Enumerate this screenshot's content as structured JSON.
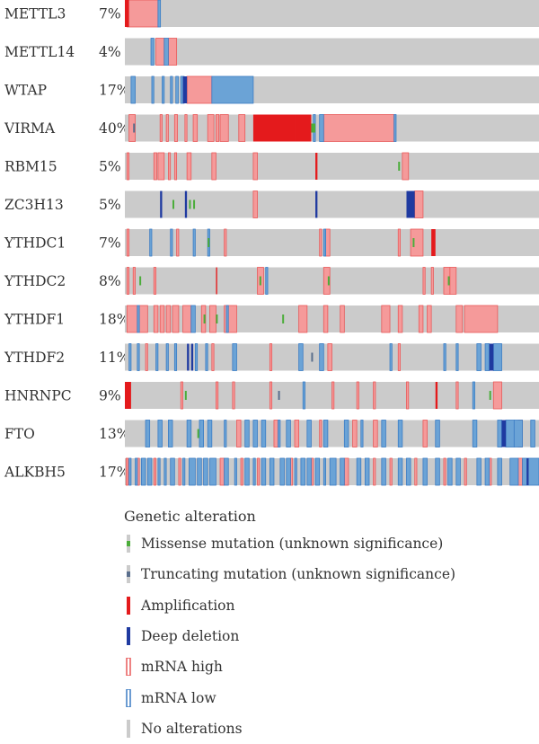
{
  "chart_data": {
    "type": "oncoprint",
    "genes": [
      {
        "name": "METTL3",
        "pct": "7%"
      },
      {
        "name": "METTL14",
        "pct": "4%"
      },
      {
        "name": "WTAP",
        "pct": "17%"
      },
      {
        "name": "VIRMA",
        "pct": "40%"
      },
      {
        "name": "RBM15",
        "pct": "5%"
      },
      {
        "name": "ZC3H13",
        "pct": "5%"
      },
      {
        "name": "YTHDC1",
        "pct": "7%"
      },
      {
        "name": "YTHDC2",
        "pct": "8%"
      },
      {
        "name": "YTHDF1",
        "pct": "18%"
      },
      {
        "name": "YTHDF2",
        "pct": "11%"
      },
      {
        "name": "HNRNPC",
        "pct": "9%"
      },
      {
        "name": "FTO",
        "pct": "13%"
      },
      {
        "name": "ALKBH5",
        "pct": "17%"
      }
    ],
    "sample_scale": 100,
    "alterations_note": "events listed as [start, end] in % of the sample axis",
    "events": [
      {
        "high": [
          [
            0.5,
            8
          ]
        ],
        "low": [
          [
            8,
            8.6
          ]
        ],
        "amp": [
          [
            0,
            1
          ]
        ]
      },
      {
        "low": [
          [
            6.3,
            7
          ],
          [
            9.5,
            10.5
          ]
        ],
        "high": [
          [
            7.5,
            9.5
          ],
          [
            10.5,
            12.5
          ]
        ]
      },
      {
        "low": [
          [
            1.5,
            2.5
          ],
          [
            6.5,
            7
          ],
          [
            9,
            9.5
          ],
          [
            11,
            11.5
          ],
          [
            12.3,
            12.9
          ],
          [
            13.5,
            14.3
          ],
          [
            21,
            31
          ]
        ],
        "del": [
          [
            14,
            15
          ]
        ],
        "high": [
          [
            15,
            21
          ]
        ]
      },
      {
        "high": [
          [
            1,
            2.5
          ],
          [
            8.5,
            9
          ],
          [
            10,
            10.5
          ],
          [
            12,
            12.7
          ],
          [
            14.5,
            15
          ],
          [
            16.5,
            17.5
          ],
          [
            20,
            21.5
          ],
          [
            22,
            22.7
          ],
          [
            23,
            25
          ],
          [
            27.5,
            29
          ],
          [
            48,
            65
          ]
        ],
        "amp": [
          [
            31,
            41
          ],
          [
            41,
            45
          ]
        ],
        "low": [
          [
            45.5,
            46
          ],
          [
            47,
            48
          ],
          [
            65,
            65.5
          ]
        ],
        "mis": [
          [
            45,
            46
          ]
        ],
        "trunc": [
          [
            2,
            2.3
          ]
        ]
      },
      {
        "high": [
          [
            0.5,
            1
          ],
          [
            7,
            7.7
          ],
          [
            8,
            9.5
          ],
          [
            10.5,
            11
          ],
          [
            12,
            12.5
          ],
          [
            15,
            16
          ],
          [
            21,
            22
          ],
          [
            31,
            32
          ],
          [
            67,
            68.5
          ]
        ],
        "amp": [
          [
            46,
            46.5
          ]
        ],
        "mis": [
          [
            66,
            66.3
          ]
        ]
      },
      {
        "del": [
          [
            8.5,
            9
          ],
          [
            14.5,
            15
          ],
          [
            46,
            46.5
          ],
          [
            68,
            70
          ]
        ],
        "mis": [
          [
            11.5,
            11.8
          ],
          [
            15.5,
            15.8
          ],
          [
            16.5,
            16.8
          ]
        ],
        "high": [
          [
            31,
            32
          ],
          [
            70,
            72
          ]
        ]
      },
      {
        "high": [
          [
            0.5,
            1
          ],
          [
            12.5,
            13
          ],
          [
            24,
            24.5
          ],
          [
            47,
            47.5
          ],
          [
            48.5,
            49.5
          ],
          [
            66,
            66.5
          ],
          [
            69,
            72
          ]
        ],
        "low": [
          [
            6,
            6.5
          ],
          [
            11,
            11.5
          ],
          [
            16.5,
            17
          ],
          [
            20,
            20.5
          ],
          [
            48,
            48.5
          ]
        ],
        "mis": [
          [
            20,
            20.3
          ],
          [
            69.5,
            69.8
          ]
        ],
        "amp": [
          [
            74,
            75
          ]
        ]
      },
      {
        "high": [
          [
            0.5,
            1
          ],
          [
            2,
            2.5
          ],
          [
            7,
            7.5
          ],
          [
            32,
            33.5
          ],
          [
            48,
            49.5
          ],
          [
            72,
            72.5
          ],
          [
            74,
            74.5
          ],
          [
            77,
            78.5
          ],
          [
            78.5,
            80
          ]
        ],
        "low": [
          [
            34,
            34.5
          ]
        ],
        "mis": [
          [
            3.5,
            3.8
          ],
          [
            32.5,
            32.8
          ],
          [
            49,
            49.3
          ],
          [
            78,
            78.3
          ]
        ],
        "amp": [
          [
            22,
            22.3
          ]
        ]
      },
      {
        "high": [
          [
            0.5,
            3
          ],
          [
            3.5,
            5.5
          ],
          [
            7,
            8
          ],
          [
            8.5,
            9.5
          ],
          [
            10,
            11
          ],
          [
            11.5,
            13
          ],
          [
            14,
            16
          ],
          [
            18.5,
            19.5
          ],
          [
            20.5,
            22
          ],
          [
            24,
            27
          ],
          [
            42,
            44
          ],
          [
            48,
            49
          ],
          [
            52,
            53
          ],
          [
            62,
            64
          ],
          [
            66,
            67
          ],
          [
            71,
            72
          ],
          [
            73,
            74
          ],
          [
            80,
            81.5
          ],
          [
            82,
            90
          ]
        ],
        "low": [
          [
            3,
            3.5
          ],
          [
            16,
            17
          ],
          [
            24.5,
            25
          ]
        ],
        "mis": [
          [
            19,
            19.3
          ],
          [
            22,
            22.3
          ],
          [
            38,
            38.3
          ]
        ]
      },
      {
        "low": [
          [
            1,
            1.5
          ],
          [
            3,
            3.5
          ],
          [
            7.5,
            8
          ],
          [
            10,
            10.5
          ],
          [
            12,
            12.5
          ],
          [
            17,
            17.5
          ],
          [
            19.5,
            20
          ],
          [
            26,
            27
          ],
          [
            42,
            43
          ],
          [
            47,
            48
          ],
          [
            64,
            64.5
          ],
          [
            77,
            77.5
          ],
          [
            80,
            80.5
          ],
          [
            85,
            86
          ],
          [
            87,
            88
          ],
          [
            89,
            91
          ]
        ],
        "del": [
          [
            15,
            15.5
          ],
          [
            16,
            16.5
          ],
          [
            88,
            89
          ]
        ],
        "high": [
          [
            5,
            5.5
          ],
          [
            21,
            21.5
          ],
          [
            35,
            35.5
          ],
          [
            49,
            50
          ],
          [
            66,
            66.5
          ]
        ],
        "trunc": [
          [
            45,
            45.3
          ]
        ]
      },
      {
        "amp": [
          [
            0,
            1.5
          ],
          [
            75,
            75.5
          ]
        ],
        "high": [
          [
            13.5,
            14
          ],
          [
            22,
            22.5
          ],
          [
            26,
            26.5
          ],
          [
            35,
            35.5
          ],
          [
            50,
            50.5
          ],
          [
            56,
            56.5
          ],
          [
            60,
            60.5
          ],
          [
            68,
            68.5
          ],
          [
            80,
            80.5
          ],
          [
            89,
            91
          ]
        ],
        "low": [
          [
            43,
            43.5
          ],
          [
            84,
            84.5
          ]
        ],
        "mis": [
          [
            14.5,
            14.8
          ],
          [
            88,
            88.3
          ]
        ],
        "trunc": [
          [
            37,
            37.3
          ]
        ]
      },
      {
        "low": [
          [
            5,
            6
          ],
          [
            8,
            9
          ],
          [
            10.5,
            11.5
          ],
          [
            15,
            16
          ],
          [
            18,
            19
          ],
          [
            20,
            21
          ],
          [
            24,
            24.5
          ],
          [
            29,
            30
          ],
          [
            31,
            32
          ],
          [
            33,
            34
          ],
          [
            37,
            37.5
          ],
          [
            39,
            40
          ],
          [
            44,
            45
          ],
          [
            48,
            49
          ],
          [
            53,
            54
          ],
          [
            57,
            57.5
          ],
          [
            62,
            63
          ],
          [
            66,
            67
          ],
          [
            75,
            76
          ],
          [
            84,
            85
          ],
          [
            90,
            91
          ],
          [
            92,
            94
          ],
          [
            94,
            96
          ],
          [
            98,
            99
          ]
        ],
        "high": [
          [
            27,
            28
          ],
          [
            36,
            37
          ],
          [
            41,
            42
          ],
          [
            47,
            47.5
          ],
          [
            55,
            56
          ],
          [
            60,
            61
          ],
          [
            72,
            73
          ],
          [
            95,
            96
          ]
        ],
        "del": [
          [
            91,
            92
          ]
        ],
        "mis": [
          [
            17.5,
            17.8
          ]
        ]
      },
      {
        "low": [
          [
            1,
            1.5
          ],
          [
            2.5,
            3
          ],
          [
            4,
            5
          ],
          [
            5.5,
            6.5
          ],
          [
            8,
            8.5
          ],
          [
            9.5,
            10
          ],
          [
            11,
            12
          ],
          [
            14,
            14.5
          ],
          [
            15.5,
            17
          ],
          [
            17.5,
            18.5
          ],
          [
            19,
            20
          ],
          [
            20.5,
            22
          ],
          [
            24,
            25
          ],
          [
            26.5,
            27
          ],
          [
            29,
            30
          ],
          [
            31,
            31.5
          ],
          [
            33,
            34
          ],
          [
            35,
            36
          ],
          [
            37.5,
            38.5
          ],
          [
            39,
            40
          ],
          [
            41,
            41.5
          ],
          [
            42.5,
            43.5
          ],
          [
            44,
            45
          ],
          [
            46,
            47
          ],
          [
            48,
            48.5
          ],
          [
            49.5,
            51
          ],
          [
            52,
            53
          ],
          [
            56,
            57
          ],
          [
            58,
            59
          ],
          [
            62,
            63
          ],
          [
            66,
            67
          ],
          [
            68,
            69
          ],
          [
            72,
            73
          ],
          [
            75,
            76
          ],
          [
            78,
            79
          ],
          [
            80,
            81
          ],
          [
            85,
            86
          ],
          [
            87,
            88
          ],
          [
            90,
            91
          ],
          [
            93,
            95
          ],
          [
            96,
            100
          ]
        ],
        "high": [
          [
            0.3,
            0.8
          ],
          [
            3,
            3.5
          ],
          [
            7,
            7.5
          ],
          [
            13,
            13.5
          ],
          [
            23,
            24
          ],
          [
            28,
            28.5
          ],
          [
            32,
            32.5
          ],
          [
            40,
            40.5
          ],
          [
            45,
            45.5
          ],
          [
            53,
            54
          ],
          [
            60,
            60.5
          ],
          [
            64,
            64.5
          ],
          [
            70,
            70.5
          ],
          [
            77,
            77.5
          ],
          [
            82,
            82.5
          ],
          [
            88,
            88.5
          ],
          [
            95,
            96
          ]
        ],
        "del": [
          [
            97,
            97.5
          ]
        ]
      }
    ],
    "legend": {
      "title": "Genetic alteration",
      "items": [
        {
          "key": "mis",
          "label": "Missense mutation (unknown significance)",
          "color": "#4bad3a"
        },
        {
          "key": "trunc",
          "label": "Truncating mutation (unknown significance)",
          "color": "#5a6e8c"
        },
        {
          "key": "amp",
          "label": "Amplification",
          "color": "#e41a1c"
        },
        {
          "key": "del",
          "label": "Deep deletion",
          "color": "#1f3aa0"
        },
        {
          "key": "high",
          "label": "mRNA high",
          "color": "#f59a9a",
          "border": "#e85a5a"
        },
        {
          "key": "low",
          "label": "mRNA low",
          "color": "#6ba3d6",
          "border": "#3b7cc4"
        },
        {
          "key": "none",
          "label": "No alterations",
          "color": "#cbcbcb"
        }
      ]
    },
    "colors": {
      "background_row": "#cbcbcb",
      "mrna_high_fill": "#f59a9a",
      "mrna_high_edge": "#e85a5a",
      "mrna_low_fill": "#6ba3d6",
      "mrna_low_edge": "#3b7cc4",
      "amplification": "#e41a1c",
      "deep_deletion": "#1f3aa0",
      "missense": "#4bad3a",
      "truncating": "#5a6e8c"
    }
  }
}
